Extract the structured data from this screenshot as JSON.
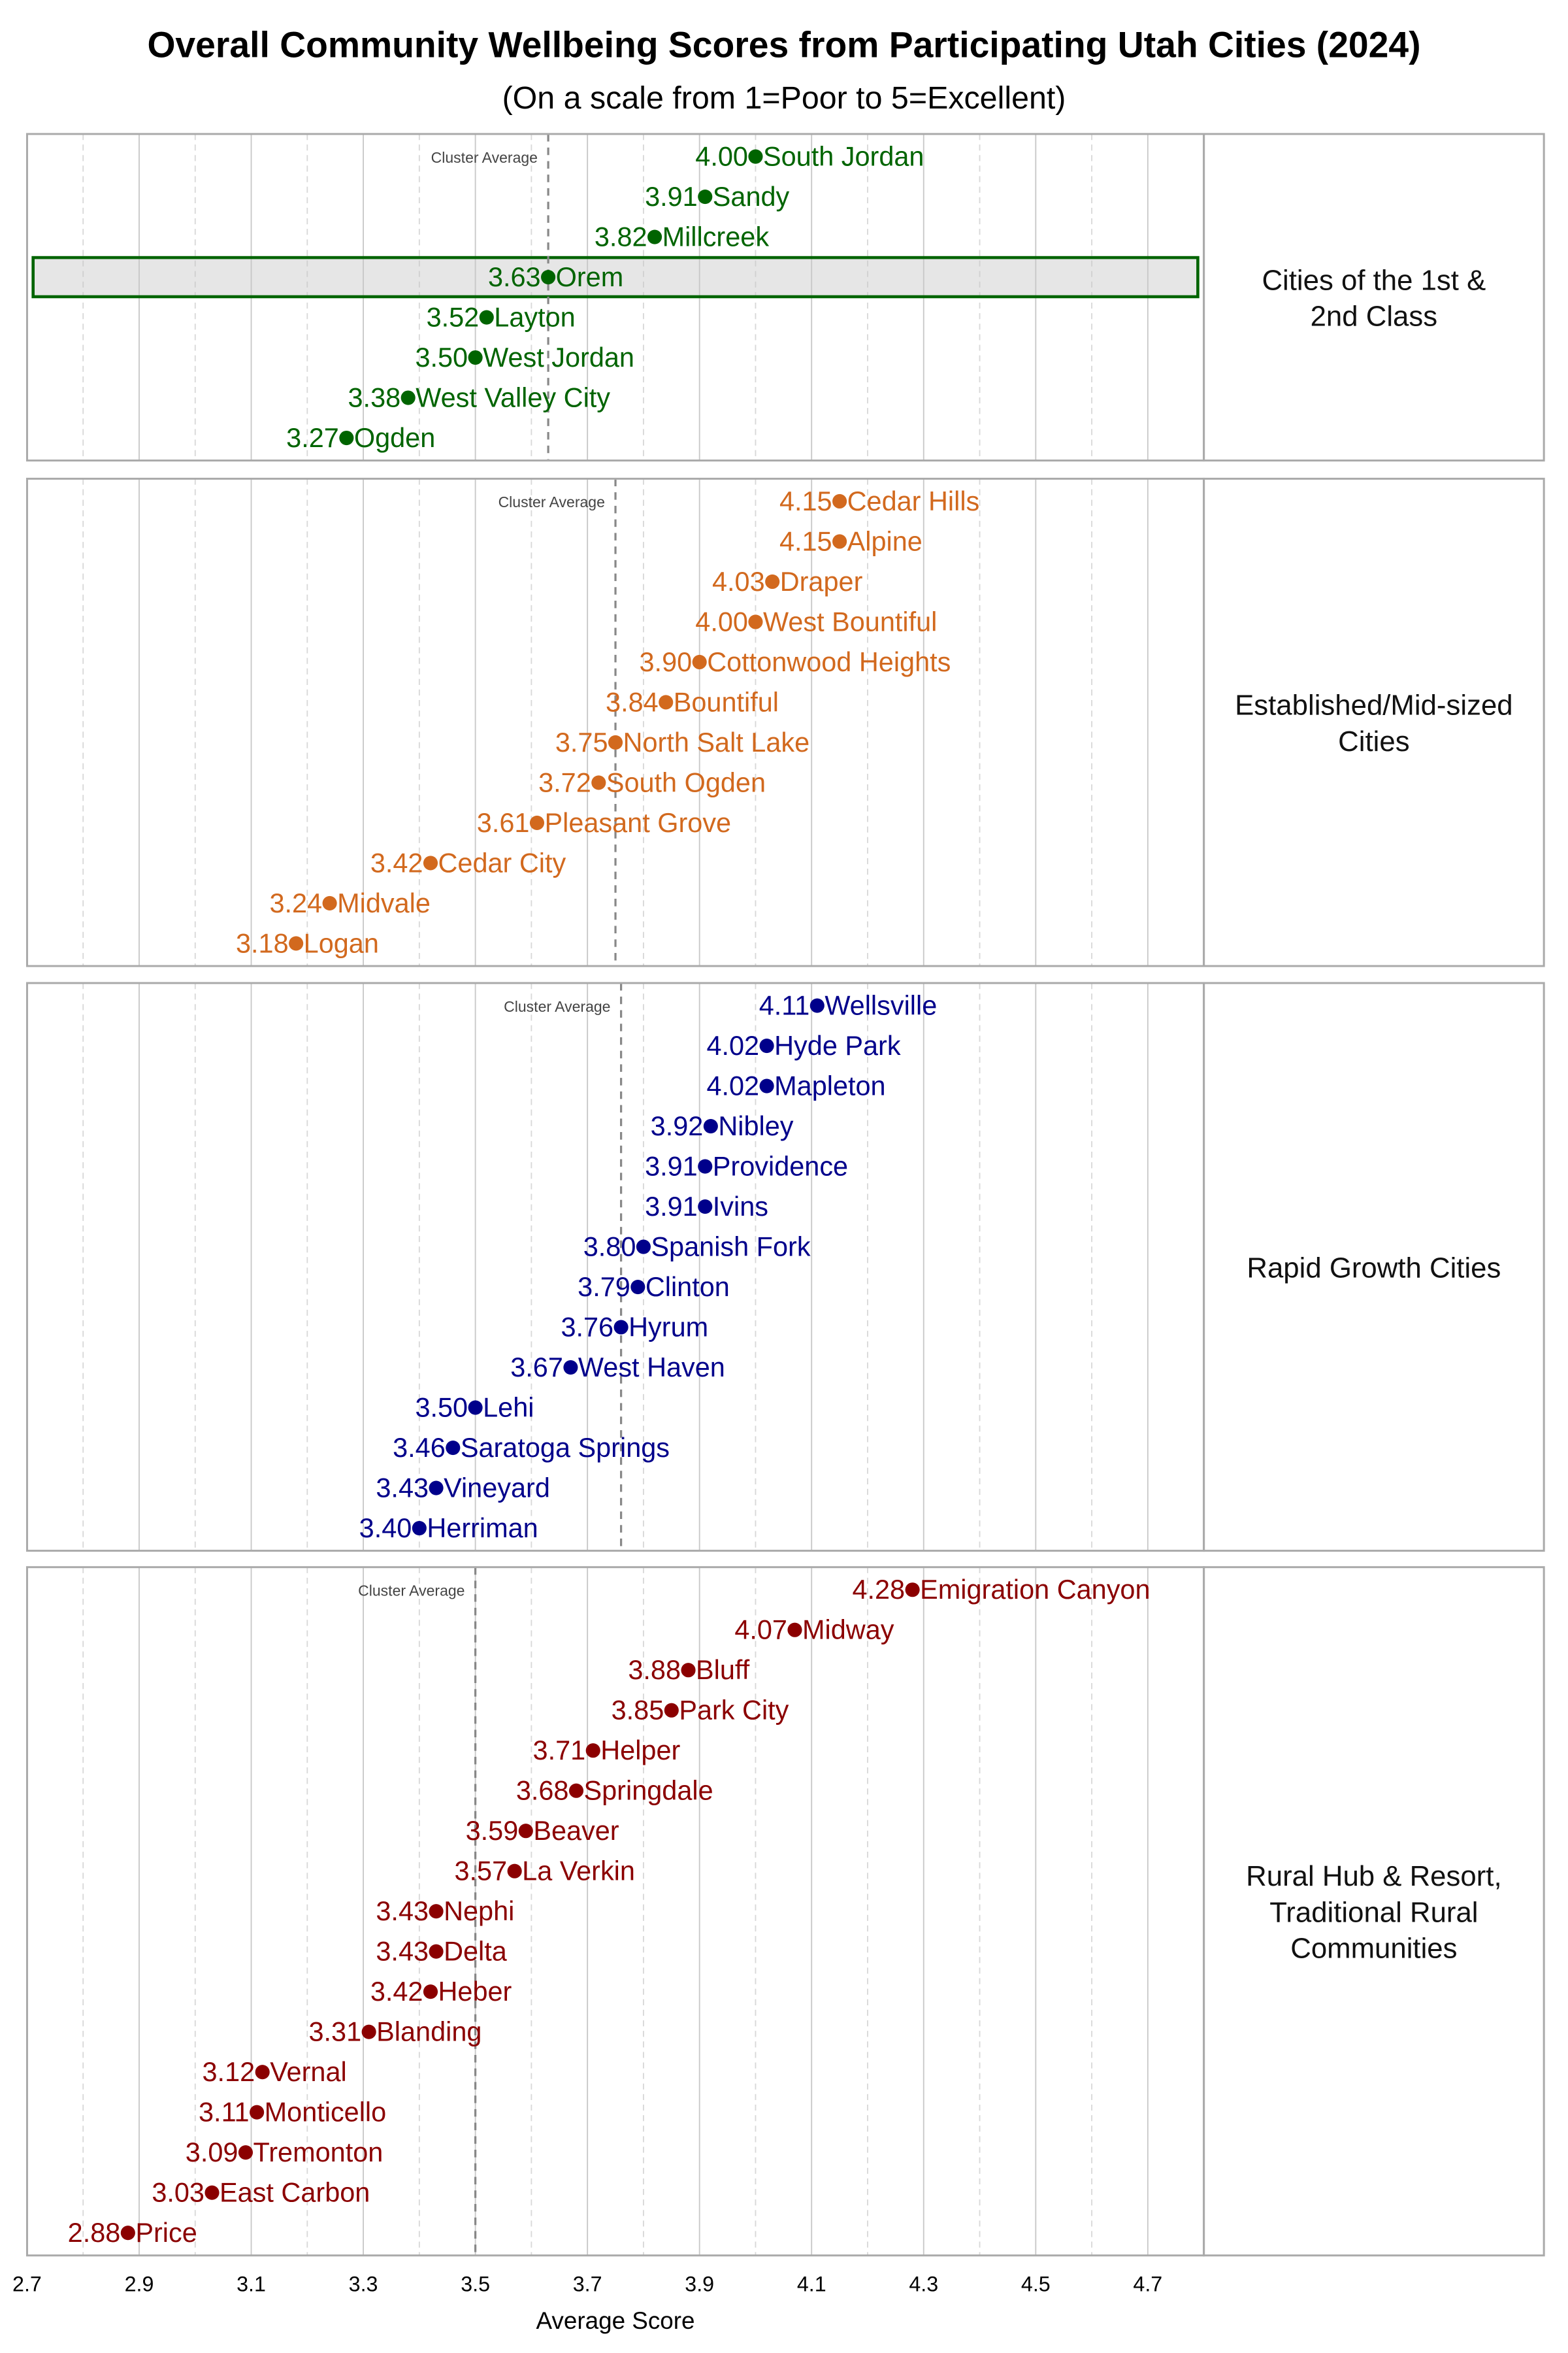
{
  "chart_data": {
    "type": "dot",
    "title": "Overall Community Wellbeing Scores from Participating Utah Cities (2024)",
    "subtitle": "(On a scale from 1=Poor to 5=Excellent)",
    "xlabel": "Average Score",
    "xlim": [
      2.7,
      4.8
    ],
    "xticks": [
      "2.7",
      "2.9",
      "3.1",
      "3.3",
      "3.5",
      "3.7",
      "3.9",
      "4.1",
      "4.3",
      "4.5",
      "4.7"
    ],
    "grid": true,
    "reference_line_label": "Cluster Average",
    "highlight": {
      "panel": 0,
      "city": "Orem"
    },
    "panels": [
      {
        "label": [
          "Cities of the 1st &",
          "2nd Class"
        ],
        "color": "#006400",
        "cluster_average": 3.63,
        "points": [
          {
            "city": "South Jordan",
            "value": 4.0
          },
          {
            "city": "Sandy",
            "value": 3.91
          },
          {
            "city": "Millcreek",
            "value": 3.82
          },
          {
            "city": "Orem",
            "value": 3.63
          },
          {
            "city": "Layton",
            "value": 3.52
          },
          {
            "city": "West Jordan",
            "value": 3.5
          },
          {
            "city": "West Valley City",
            "value": 3.38
          },
          {
            "city": "Ogden",
            "value": 3.27
          }
        ]
      },
      {
        "label": [
          "Established/Mid-sized",
          "Cities"
        ],
        "color": "#D2691E",
        "cluster_average": 3.75,
        "points": [
          {
            "city": "Cedar Hills",
            "value": 4.15
          },
          {
            "city": "Alpine",
            "value": 4.15
          },
          {
            "city": "Draper",
            "value": 4.03
          },
          {
            "city": "West Bountiful",
            "value": 4.0
          },
          {
            "city": "Cottonwood Heights",
            "value": 3.9
          },
          {
            "city": "Bountiful",
            "value": 3.84
          },
          {
            "city": "North Salt Lake",
            "value": 3.75
          },
          {
            "city": "South Ogden",
            "value": 3.72
          },
          {
            "city": "Pleasant Grove",
            "value": 3.61
          },
          {
            "city": "Cedar City",
            "value": 3.42
          },
          {
            "city": "Midvale",
            "value": 3.24
          },
          {
            "city": "Logan",
            "value": 3.18
          }
        ]
      },
      {
        "label": [
          "Rapid Growth Cities"
        ],
        "color": "#00008B",
        "cluster_average": 3.76,
        "points": [
          {
            "city": "Wellsville",
            "value": 4.11
          },
          {
            "city": "Hyde Park",
            "value": 4.02
          },
          {
            "city": "Mapleton",
            "value": 4.02
          },
          {
            "city": "Nibley",
            "value": 3.92
          },
          {
            "city": "Providence",
            "value": 3.91
          },
          {
            "city": "Ivins",
            "value": 3.91
          },
          {
            "city": "Spanish Fork",
            "value": 3.8
          },
          {
            "city": "Clinton",
            "value": 3.79
          },
          {
            "city": "Hyrum",
            "value": 3.76
          },
          {
            "city": "West Haven",
            "value": 3.67
          },
          {
            "city": "Lehi",
            "value": 3.5
          },
          {
            "city": "Saratoga Springs",
            "value": 3.46
          },
          {
            "city": "Vineyard",
            "value": 3.43
          },
          {
            "city": "Herriman",
            "value": 3.4
          }
        ]
      },
      {
        "label": [
          "Rural Hub & Resort,",
          "Traditional Rural",
          "Communities"
        ],
        "color": "#8B0000",
        "cluster_average": 3.5,
        "points": [
          {
            "city": "Emigration Canyon",
            "value": 4.28
          },
          {
            "city": "Midway",
            "value": 4.07
          },
          {
            "city": "Bluff",
            "value": 3.88
          },
          {
            "city": "Park City",
            "value": 3.85
          },
          {
            "city": "Helper",
            "value": 3.71
          },
          {
            "city": "Springdale",
            "value": 3.68
          },
          {
            "city": "Beaver",
            "value": 3.59
          },
          {
            "city": "La Verkin",
            "value": 3.57
          },
          {
            "city": "Nephi",
            "value": 3.43
          },
          {
            "city": "Delta",
            "value": 3.43
          },
          {
            "city": "Heber",
            "value": 3.42
          },
          {
            "city": "Blanding",
            "value": 3.31
          },
          {
            "city": "Vernal",
            "value": 3.12
          },
          {
            "city": "Monticello",
            "value": 3.11
          },
          {
            "city": "Tremonton",
            "value": 3.09
          },
          {
            "city": "East Carbon",
            "value": 3.03
          },
          {
            "city": "Price",
            "value": 2.88
          }
        ]
      }
    ]
  }
}
